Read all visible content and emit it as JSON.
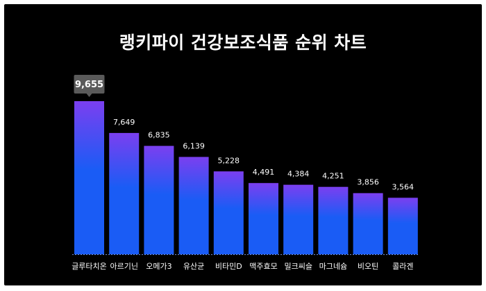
{
  "chart_data": {
    "type": "bar",
    "title": "랭키파이 건강보조식품 순위 차트",
    "categories": [
      "글루타치온",
      "아르기닌",
      "오메가3",
      "유산균",
      "비타민D",
      "맥주효모",
      "밀크씨슬",
      "마그네슘",
      "비오틴",
      "콜라겐"
    ],
    "values": [
      9655,
      7649,
      6835,
      6139,
      5228,
      4491,
      4384,
      4251,
      3856,
      3564
    ],
    "value_labels": [
      "9,655",
      "7,649",
      "6,835",
      "6,139",
      "5,228",
      "4,491",
      "4,384",
      "4,251",
      "3,856",
      "3,564"
    ],
    "highlighted_index": 0,
    "xlabel": "",
    "ylabel": "",
    "ylim": [
      0,
      9655
    ],
    "grid": false,
    "colors": {
      "bar_top": "#7b3ff0",
      "bar_bottom": "#1a5cf5",
      "tooltip": "#5a5a5a",
      "baseline": "#6f8fd8"
    }
  }
}
